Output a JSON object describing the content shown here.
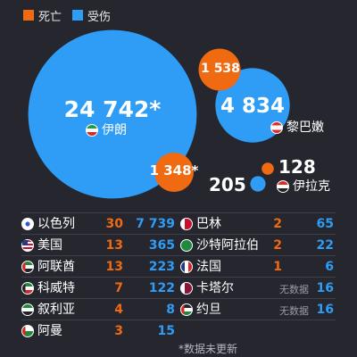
{
  "legend": [
    {
      "label": "死亡",
      "color": "#f06a12"
    },
    {
      "label": "受伤",
      "color": "#2f9cf5"
    }
  ],
  "chart_data": {
    "type": "bubble",
    "title": "",
    "colors": {
      "deaths": "#f06a12",
      "injuries": "#2f9cf5"
    },
    "bubbles": [
      {
        "country": "伊朗",
        "flag": "ir",
        "injuries": 24742,
        "injuries_label": "24 742*",
        "deaths": 1348,
        "deaths_label": "1 348*"
      },
      {
        "country": "黎巴嫩",
        "flag": "lb",
        "injuries": 4834,
        "injuries_label": "4 834",
        "deaths": 1538,
        "deaths_label": "1 538"
      },
      {
        "country": "伊拉克",
        "flag": "iq",
        "injuries": 205,
        "injuries_label": "205",
        "deaths": 128,
        "deaths_label": "128"
      }
    ],
    "table": [
      {
        "country": "以色列",
        "flag": "il",
        "deaths": "30",
        "injuries": "7 739"
      },
      {
        "country": "巴林",
        "flag": "bh",
        "deaths": "2",
        "injuries": "65"
      },
      {
        "country": "美国",
        "flag": "us",
        "deaths": "13",
        "injuries": "365"
      },
      {
        "country": "沙特阿拉伯",
        "flag": "sa",
        "deaths": "2",
        "injuries": "22"
      },
      {
        "country": "阿联酋",
        "flag": "ae",
        "deaths": "13",
        "injuries": "223"
      },
      {
        "country": "法国",
        "flag": "fr",
        "deaths": "1",
        "injuries": "6"
      },
      {
        "country": "科威特",
        "flag": "kw",
        "deaths": "7",
        "injuries": "122"
      },
      {
        "country": "卡塔尔",
        "flag": "qa",
        "deaths": "无数据",
        "injuries": "16"
      },
      {
        "country": "叙利亚",
        "flag": "sy",
        "deaths": "4",
        "injuries": "8"
      },
      {
        "country": "约旦",
        "flag": "jo",
        "deaths": "无数据",
        "injuries": "16"
      },
      {
        "country": "阿曼",
        "flag": "om",
        "deaths": "3",
        "injuries": "15"
      }
    ],
    "footnote": "*数据未更新"
  }
}
